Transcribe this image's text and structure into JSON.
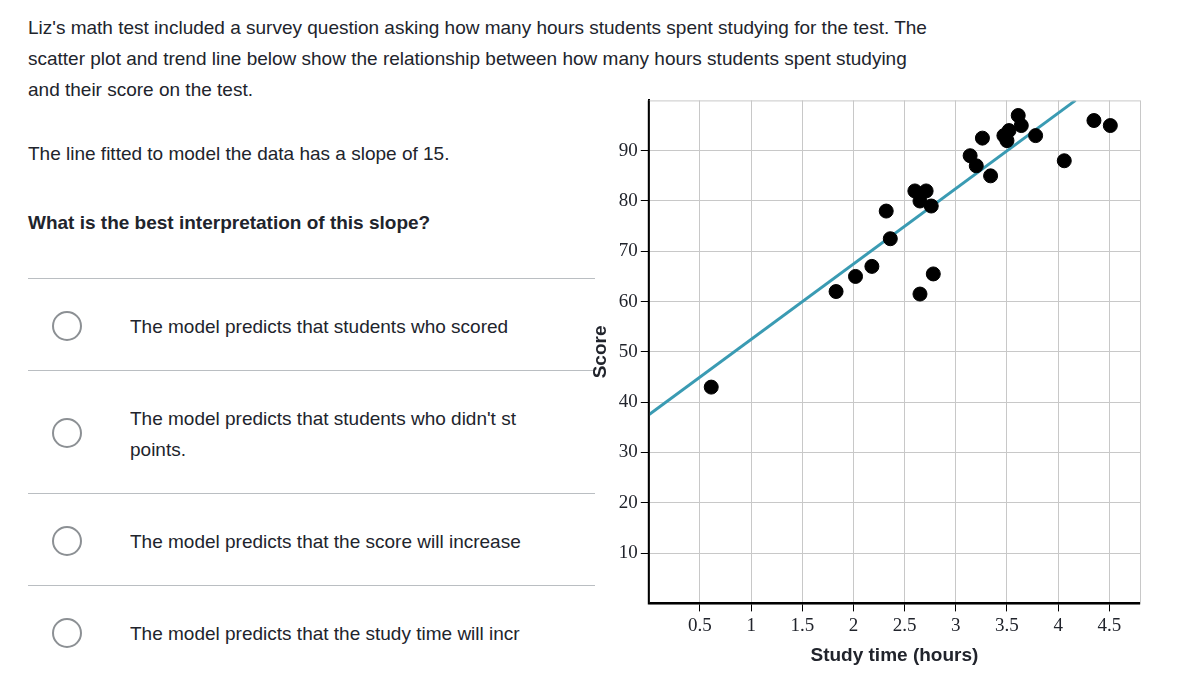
{
  "question": {
    "intro": [
      "Liz's math test included a survey question asking how many hours students spent studying for the test. The",
      "scatter plot and trend line below show the relationship between how many hours students spent studying",
      "and their score on the test."
    ],
    "statement": "The line fitted to model the data has a slope of 15.",
    "prompt": "What is the best interpretation of this slope?",
    "options": [
      [
        "The model predicts that students who scored"
      ],
      [
        "The model predicts that students who didn't st",
        "points."
      ],
      [
        "The model predicts that the score will increase"
      ],
      [
        "The model predicts that the study time will incr"
      ]
    ]
  },
  "chart_data": {
    "type": "scatter",
    "x_label": "Study time (hours)",
    "y_label": "Score",
    "x": [
      0.61,
      1.83,
      2.02,
      2.18,
      2.32,
      2.36,
      2.6,
      2.65,
      2.71,
      2.76,
      2.65,
      2.78,
      3.14,
      3.2,
      3.26,
      3.34,
      3.47,
      3.52,
      3.5,
      3.61,
      3.64,
      3.78,
      4.06,
      4.35,
      4.51
    ],
    "values": [
      43,
      62,
      65,
      67,
      78,
      72.5,
      82,
      80,
      82,
      79,
      61.5,
      65.5,
      89,
      87,
      92.5,
      85,
      93,
      94,
      92,
      97,
      95,
      93,
      88,
      96,
      95
    ],
    "color": "#000000",
    "trend_line": {
      "x": [
        0,
        4.17
      ],
      "values": [
        37.5,
        100
      ],
      "color": "#3a9bb3"
    },
    "xlim": [
      0,
      4.8
    ],
    "xticks": [
      0.5,
      1,
      1.5,
      2,
      2.5,
      3,
      3.5,
      4,
      4.5
    ],
    "ylim": [
      0,
      100
    ],
    "yticks": [
      10,
      20,
      30,
      40,
      50,
      60,
      70,
      80,
      90
    ],
    "grid": true
  }
}
